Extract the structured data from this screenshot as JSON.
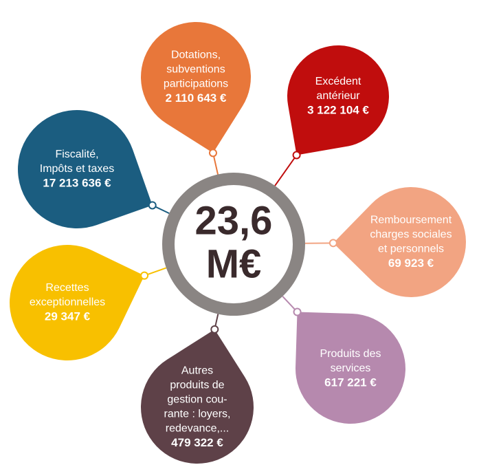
{
  "center": {
    "lines": [
      "23,6",
      "M€"
    ]
  },
  "nodes": [
    {
      "label": [
        "Dotations,",
        "subventions",
        "participations"
      ],
      "amount": "2 110 643 €"
    },
    {
      "label": [
        "Excédent",
        "antérieur"
      ],
      "amount": "3 122 104 €"
    },
    {
      "label": [
        "Remboursement",
        "charges sociales",
        "et personnels"
      ],
      "amount": "69 923 €"
    },
    {
      "label": [
        "Produits des",
        "services"
      ],
      "amount": "617 221 €"
    },
    {
      "label": [
        "Autres",
        "produits de",
        "gestion cou-",
        "rante : loyers,",
        "redevance,..."
      ],
      "amount": "479 322 €"
    },
    {
      "label": [
        "Recettes",
        "exceptionnelles"
      ],
      "amount": "29 347 €"
    },
    {
      "label": [
        "Fiscalité,",
        "Impôts et taxes"
      ],
      "amount": "17 213 636 €"
    }
  ]
}
